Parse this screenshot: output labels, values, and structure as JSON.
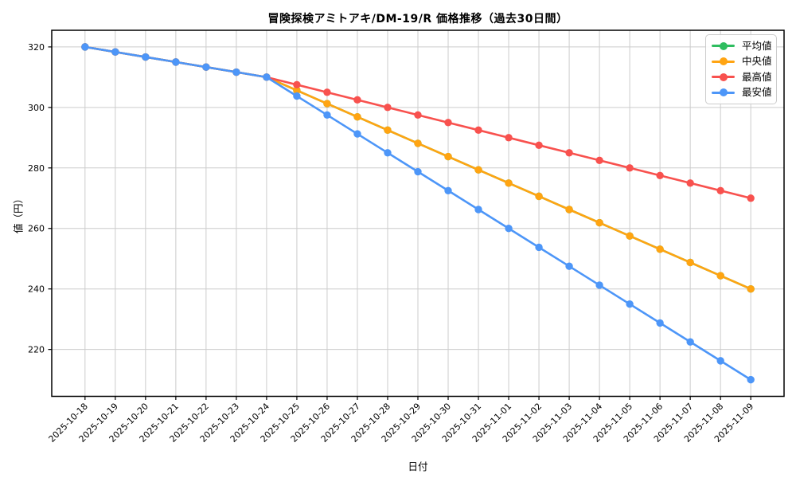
{
  "chart_data": {
    "type": "line",
    "title": "冒険探検アミトアキ/DM-19/R 価格推移（過去30日間）",
    "xlabel": "日付",
    "ylabel": "値（円）",
    "grid": true,
    "legend_position": "upper-right",
    "x": [
      "2025-10-18",
      "2025-10-19",
      "2025-10-20",
      "2025-10-21",
      "2025-10-22",
      "2025-10-23",
      "2025-10-24",
      "2025-10-25",
      "2025-10-26",
      "2025-10-27",
      "2025-10-28",
      "2025-10-29",
      "2025-10-30",
      "2025-10-31",
      "2025-11-01",
      "2025-11-02",
      "2025-11-03",
      "2025-11-04",
      "2025-11-05",
      "2025-11-06",
      "2025-11-07",
      "2025-11-08",
      "2025-11-09"
    ],
    "yticks": [
      220,
      240,
      260,
      280,
      300,
      320
    ],
    "ylim": [
      204.5,
      325.5
    ],
    "x_margin_units": 1.1,
    "series": [
      {
        "key": "mean",
        "name": "平均値",
        "color": "#2ebd5f",
        "values": [
          320,
          318.33,
          316.67,
          315,
          313.33,
          311.67,
          310,
          305.63,
          301.25,
          296.88,
          292.5,
          288.13,
          283.75,
          279.38,
          275,
          270.63,
          266.25,
          261.88,
          257.5,
          253.13,
          248.75,
          244.38,
          240
        ]
      },
      {
        "key": "median",
        "name": "中央値",
        "color": "#ffa412",
        "values": [
          320,
          318.33,
          316.67,
          315,
          313.33,
          311.67,
          310,
          305.63,
          301.25,
          296.88,
          292.5,
          288.13,
          283.75,
          279.38,
          275,
          270.63,
          266.25,
          261.88,
          257.5,
          253.13,
          248.75,
          244.38,
          240
        ]
      },
      {
        "key": "max",
        "name": "最高値",
        "color": "#f8514e",
        "values": [
          320,
          318.33,
          316.67,
          315,
          313.33,
          311.67,
          310,
          307.5,
          305,
          302.5,
          300,
          297.5,
          295,
          292.5,
          290,
          287.5,
          285,
          282.5,
          280,
          277.5,
          275,
          272.5,
          270
        ]
      },
      {
        "key": "min",
        "name": "最安値",
        "color": "#4d96f8",
        "values": [
          320,
          318.33,
          316.67,
          315,
          313.33,
          311.67,
          310,
          303.75,
          297.5,
          291.25,
          285,
          278.75,
          272.5,
          266.25,
          260,
          253.75,
          247.5,
          241.25,
          235,
          228.75,
          222.5,
          216.25,
          210
        ]
      }
    ]
  }
}
